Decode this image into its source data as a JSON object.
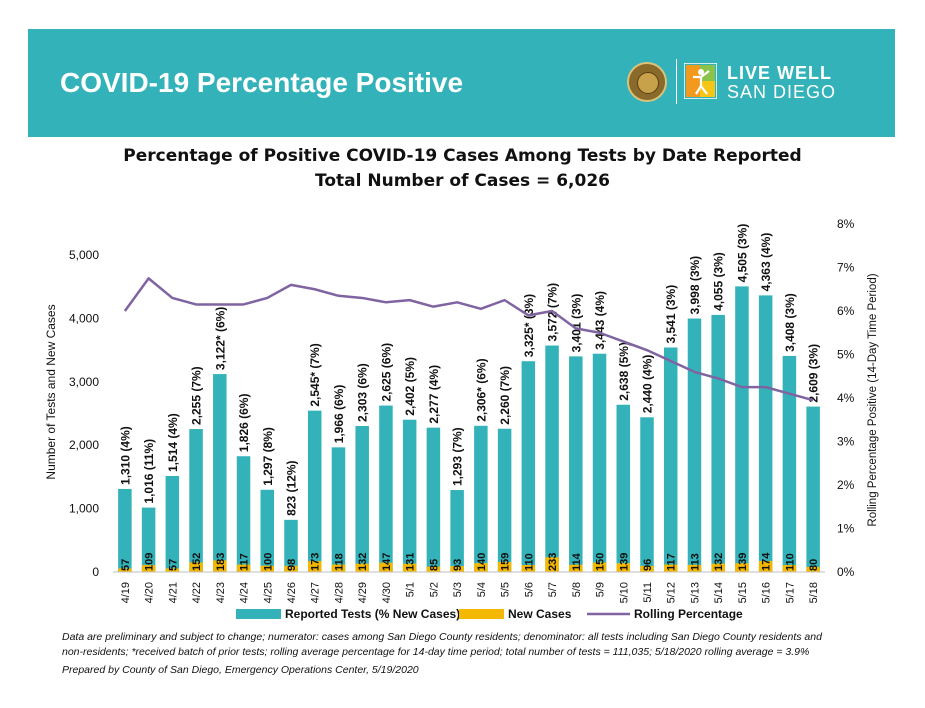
{
  "banner": {
    "title": "COVID-19 Percentage Positive",
    "logo_line1": "LIVE WELL",
    "logo_line2": "SAN DIEGO",
    "color": "#33b3b9"
  },
  "chart": {
    "title_line1": "Percentage of Positive COVID-19 Cases Among Tests by Date Reported",
    "title_line2": "Total Number of Cases = 6,026"
  },
  "notes": {
    "line1": "Data are preliminary and subject to change; numerator: cases among San Diego County residents; denominator: all tests including San Diego County residents and",
    "line2": "non-residents; *received batch of prior tests; rolling average percentage for 14-day time period; total number of tests = 111,035; 5/18/2020 rolling average = 3.9%",
    "line3": "Prepared by County of San Diego, Emergency Operations Center, 5/19/2020"
  },
  "chart_data": {
    "type": "bar",
    "categories": [
      "4/19",
      "4/20",
      "4/21",
      "4/22",
      "4/23",
      "4/24",
      "4/25",
      "4/26",
      "4/27",
      "4/28",
      "4/29",
      "4/30",
      "5/1",
      "5/2",
      "5/3",
      "5/4",
      "5/5",
      "5/6",
      "5/7",
      "5/8",
      "5/9",
      "5/10",
      "5/11",
      "5/12",
      "5/13",
      "5/14",
      "5/15",
      "5/16",
      "5/17",
      "5/18"
    ],
    "series": [
      {
        "name": "Reported Tests (% New Cases)",
        "color": "#33b3b9",
        "values": [
          1310,
          1016,
          1514,
          2255,
          3122,
          1826,
          1297,
          823,
          2545,
          1966,
          2303,
          2625,
          2402,
          2277,
          1293,
          2306,
          2260,
          3325,
          3572,
          3401,
          3443,
          2638,
          2440,
          3541,
          3998,
          4055,
          4505,
          4363,
          3408,
          2609
        ],
        "labels": [
          "1,310 (4%)",
          "1,016 (11%)",
          "1,514 (4%)",
          "2,255 (7%)",
          "3,122* (6%)",
          "1,826 (6%)",
          "1,297 (8%)",
          "823 (12%)",
          "2,545* (7%)",
          "1,966 (6%)",
          "2,303 (6%)",
          "2,625 (6%)",
          "2,402 (5%)",
          "2,277 (4%)",
          "1,293 (7%)",
          "2,306* (6%)",
          "2,260 (7%)",
          "3,325* (3%)",
          "3,572 (7%)",
          "3,401 (3%)",
          "3,443 (4%)",
          "2,638 (5%)",
          "2,440 (4%)",
          "3,541 (3%)",
          "3,998 (3%)",
          "4,055 (3%)",
          "4,505 (3%)",
          "4,363 (4%)",
          "3,408 (3%)",
          "2,609 (3%)"
        ]
      },
      {
        "name": "New Cases",
        "color": "#f5b800",
        "values": [
          57,
          109,
          57,
          152,
          183,
          117,
          100,
          98,
          173,
          118,
          132,
          147,
          131,
          85,
          93,
          140,
          159,
          110,
          233,
          114,
          150,
          139,
          96,
          117,
          113,
          132,
          139,
          174,
          110,
          80
        ]
      },
      {
        "name": "Rolling Percentage",
        "color": "#8064a2",
        "axis": "right",
        "values": [
          6.0,
          6.75,
          6.3,
          6.15,
          6.15,
          6.15,
          6.3,
          6.6,
          6.5,
          6.35,
          6.3,
          6.2,
          6.25,
          6.1,
          6.2,
          6.05,
          6.25,
          5.9,
          6.0,
          5.6,
          5.5,
          5.3,
          5.1,
          4.85,
          4.6,
          4.45,
          4.25,
          4.25,
          4.1,
          3.95
        ]
      }
    ],
    "y_left": {
      "label": "Number of Tests and New Cases",
      "min": 0,
      "max": 5000,
      "ticks": [
        0,
        1000,
        2000,
        3000,
        4000,
        5000
      ],
      "tick_labels": [
        "0",
        "1,000",
        "2,000",
        "3,000",
        "4,000",
        "5,000"
      ]
    },
    "y_right": {
      "label": "Rolling Percentage Positive (14-Day Time Period)",
      "min": 0,
      "max": 8,
      "ticks": [
        0,
        1,
        2,
        3,
        4,
        5,
        6,
        7,
        8
      ],
      "tick_labels": [
        "0%",
        "1%",
        "2%",
        "3%",
        "4%",
        "5%",
        "6%",
        "7%",
        "8%"
      ]
    },
    "legend_position": "bottom",
    "grid": false
  }
}
